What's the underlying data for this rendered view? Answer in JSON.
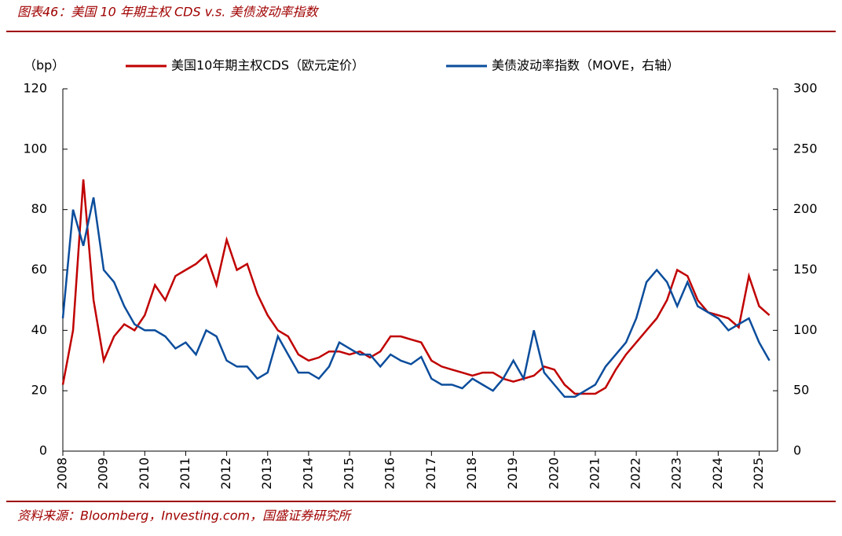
{
  "chart_data": {
    "type": "line",
    "title": "图表46：美国 10 年期主权 CDS v.s. 美债波动率指数",
    "source": "资料来源：Bloomberg，Investing.com，国盛证券研究所",
    "y_label": "（bp）",
    "x": [
      2008,
      2008.25,
      2008.5,
      2008.75,
      2009,
      2009.25,
      2009.5,
      2009.75,
      2010,
      2010.25,
      2010.5,
      2010.75,
      2011,
      2011.25,
      2011.5,
      2011.75,
      2012,
      2012.25,
      2012.5,
      2012.75,
      2013,
      2013.25,
      2013.5,
      2013.75,
      2014,
      2014.25,
      2014.5,
      2014.75,
      2015,
      2015.25,
      2015.5,
      2015.75,
      2016,
      2016.25,
      2016.5,
      2016.75,
      2017,
      2017.25,
      2017.5,
      2017.75,
      2018,
      2018.25,
      2018.5,
      2018.75,
      2019,
      2019.25,
      2019.5,
      2019.75,
      2020,
      2020.25,
      2020.5,
      2020.75,
      2021,
      2021.25,
      2021.5,
      2021.75,
      2022,
      2022.25,
      2022.5,
      2022.75,
      2023,
      2023.25,
      2023.5,
      2023.75,
      2024,
      2024.25,
      2024.5,
      2024.75,
      2025,
      2025.25
    ],
    "series": [
      {
        "name": "美国10年期主权CDS（欧元定价）",
        "color": "#c00000",
        "axis": "y",
        "values": [
          22,
          40,
          90,
          50,
          30,
          38,
          42,
          40,
          45,
          55,
          50,
          58,
          60,
          62,
          65,
          55,
          70,
          60,
          62,
          52,
          45,
          40,
          38,
          32,
          30,
          31,
          33,
          33,
          32,
          33,
          31,
          33,
          38,
          38,
          37,
          36,
          30,
          28,
          27,
          26,
          25,
          26,
          26,
          24,
          23,
          24,
          25,
          28,
          27,
          22,
          19,
          19,
          19,
          21,
          27,
          32,
          36,
          40,
          44,
          50,
          60,
          58,
          50,
          46,
          45,
          44,
          41,
          58,
          48,
          45
        ]
      },
      {
        "name": "美债波动率指数（MOVE，右轴）",
        "color": "#0b4d9c",
        "axis": "y2",
        "values": [
          110,
          200,
          170,
          210,
          150,
          140,
          120,
          105,
          100,
          100,
          95,
          85,
          90,
          80,
          100,
          95,
          75,
          70,
          70,
          60,
          65,
          95,
          80,
          65,
          65,
          60,
          70,
          90,
          85,
          80,
          80,
          70,
          80,
          75,
          72,
          78,
          60,
          55,
          55,
          52,
          60,
          55,
          50,
          60,
          75,
          60,
          100,
          65,
          55,
          45,
          45,
          50,
          55,
          70,
          80,
          90,
          110,
          140,
          150,
          140,
          120,
          140,
          120,
          115,
          110,
          100,
          105,
          110,
          90,
          75
        ]
      }
    ],
    "xlim": [
      2008,
      2025.45
    ],
    "xticks": [
      2008,
      2009,
      2010,
      2011,
      2012,
      2013,
      2014,
      2015,
      2016,
      2017,
      2018,
      2019,
      2020,
      2021,
      2022,
      2023,
      2024,
      2025
    ],
    "ylim": [
      0,
      120
    ],
    "yticks": [
      0,
      20,
      40,
      60,
      80,
      100,
      120
    ],
    "y2lim": [
      0,
      300
    ],
    "y2ticks": [
      0,
      50,
      100,
      150,
      200,
      250,
      300
    ],
    "grid": false
  }
}
